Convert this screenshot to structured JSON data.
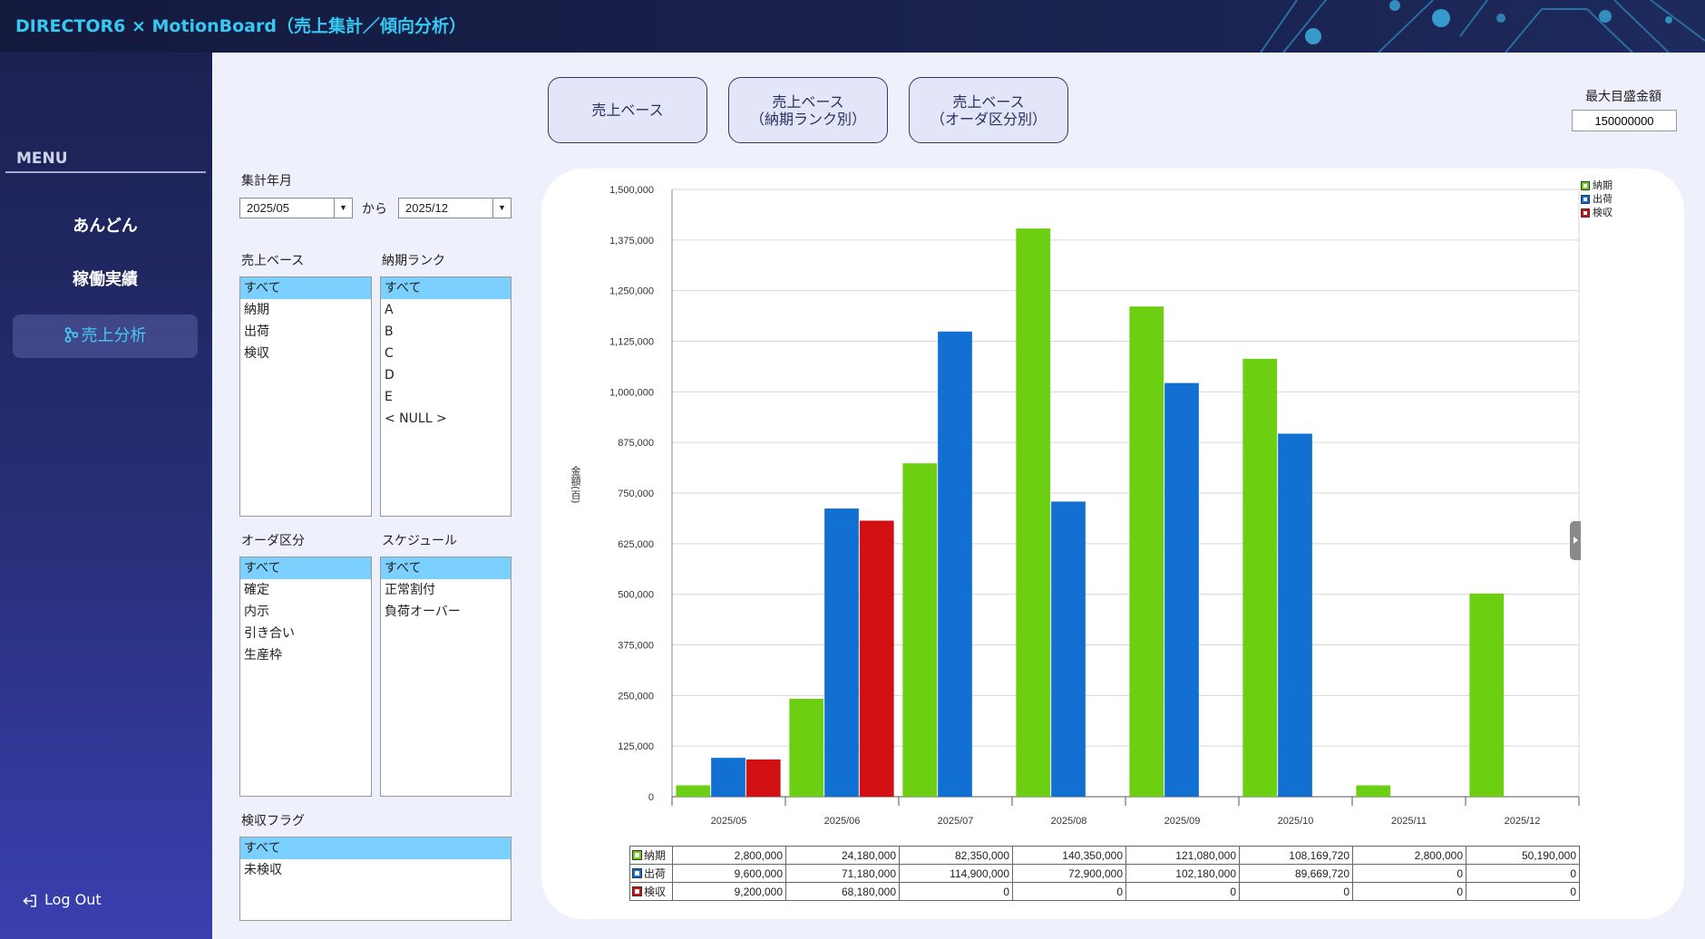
{
  "header": {
    "title": "DIRECTOR6 × MotionBoard（売上集計／傾向分析）"
  },
  "sidebar": {
    "menu_title": "MENU",
    "items": [
      {
        "label": "あんどん",
        "active": false
      },
      {
        "label": "稼働実績",
        "active": false
      },
      {
        "label": "売上分析",
        "active": true,
        "icon": "branch-icon"
      }
    ],
    "logout_label": "Log Out",
    "logout_icon": "logout-icon"
  },
  "view_buttons": [
    {
      "label": "売上ベース"
    },
    {
      "label": "売上ベース\n（納期ランク別）"
    },
    {
      "label": "売上ベース\n（オーダ区分別）"
    }
  ],
  "max_scale": {
    "label": "最大目盛金額",
    "value": "150000000"
  },
  "filters": {
    "period_label": "集計年月",
    "from_value": "2025/05",
    "separator": "から",
    "to_value": "2025/12",
    "sales_base": {
      "label": "売上ベース",
      "options": [
        "すべて",
        "納期",
        "出荷",
        "検収"
      ],
      "selected": 0
    },
    "delivery_rank": {
      "label": "納期ランク",
      "options": [
        "すべて",
        "A",
        "B",
        "C",
        "D",
        "E",
        "< NULL >"
      ],
      "selected": 0
    },
    "order_type": {
      "label": "オーダ区分",
      "options": [
        "すべて",
        "確定",
        "内示",
        "引き合い",
        "生産枠"
      ],
      "selected": 0
    },
    "schedule": {
      "label": "スケジュール",
      "options": [
        "すべて",
        "正常割付",
        "負荷オーバー"
      ],
      "selected": 0
    },
    "inspection_flag": {
      "label": "検収フラグ",
      "options": [
        "すべて",
        "未検収"
      ],
      "selected": 0
    }
  },
  "chart_data": {
    "type": "bar",
    "ylabel": "金額(百)",
    "ylim": [
      0,
      1500000
    ],
    "yticks": [
      0,
      125000,
      250000,
      375000,
      500000,
      625000,
      750000,
      875000,
      1000000,
      1125000,
      1250000,
      1375000,
      1500000
    ],
    "ytick_labels": [
      "0",
      "125,000",
      "250,000",
      "375,000",
      "500,000",
      "625,000",
      "750,000",
      "875,000",
      "1,000,000",
      "1,125,000",
      "1,250,000",
      "1,375,000",
      "1,500,000"
    ],
    "categories": [
      "2025/05",
      "2025/06",
      "2025/07",
      "2025/08",
      "2025/09",
      "2025/10",
      "2025/11",
      "2025/12"
    ],
    "legend_position": "top-right",
    "grid": true,
    "series": [
      {
        "name": "納期",
        "color": "#6ccf12",
        "values": [
          28000,
          241800,
          823500,
          1403500,
          1210800,
          1081697,
          28000,
          501900
        ]
      },
      {
        "name": "出荷",
        "color": "#1170d2",
        "values": [
          96000,
          711800,
          1149000,
          729000,
          1021800,
          896697,
          0,
          0
        ]
      },
      {
        "name": "検収",
        "color": "#d21014",
        "values": [
          92000,
          681800,
          0,
          0,
          0,
          0,
          0,
          0
        ]
      }
    ]
  },
  "table": {
    "rows": [
      {
        "name": "納期",
        "color": "#6ccf12",
        "cells": [
          "2,800,000",
          "24,180,000",
          "82,350,000",
          "140,350,000",
          "121,080,000",
          "108,169,720",
          "2,800,000",
          "50,190,000"
        ]
      },
      {
        "name": "出荷",
        "color": "#1170d2",
        "cells": [
          "9,600,000",
          "71,180,000",
          "114,900,000",
          "72,900,000",
          "102,180,000",
          "89,669,720",
          "0",
          "0"
        ]
      },
      {
        "name": "検収",
        "color": "#d21014",
        "cells": [
          "9,200,000",
          "68,180,000",
          "0",
          "0",
          "0",
          "0",
          "0",
          "0"
        ]
      }
    ]
  }
}
